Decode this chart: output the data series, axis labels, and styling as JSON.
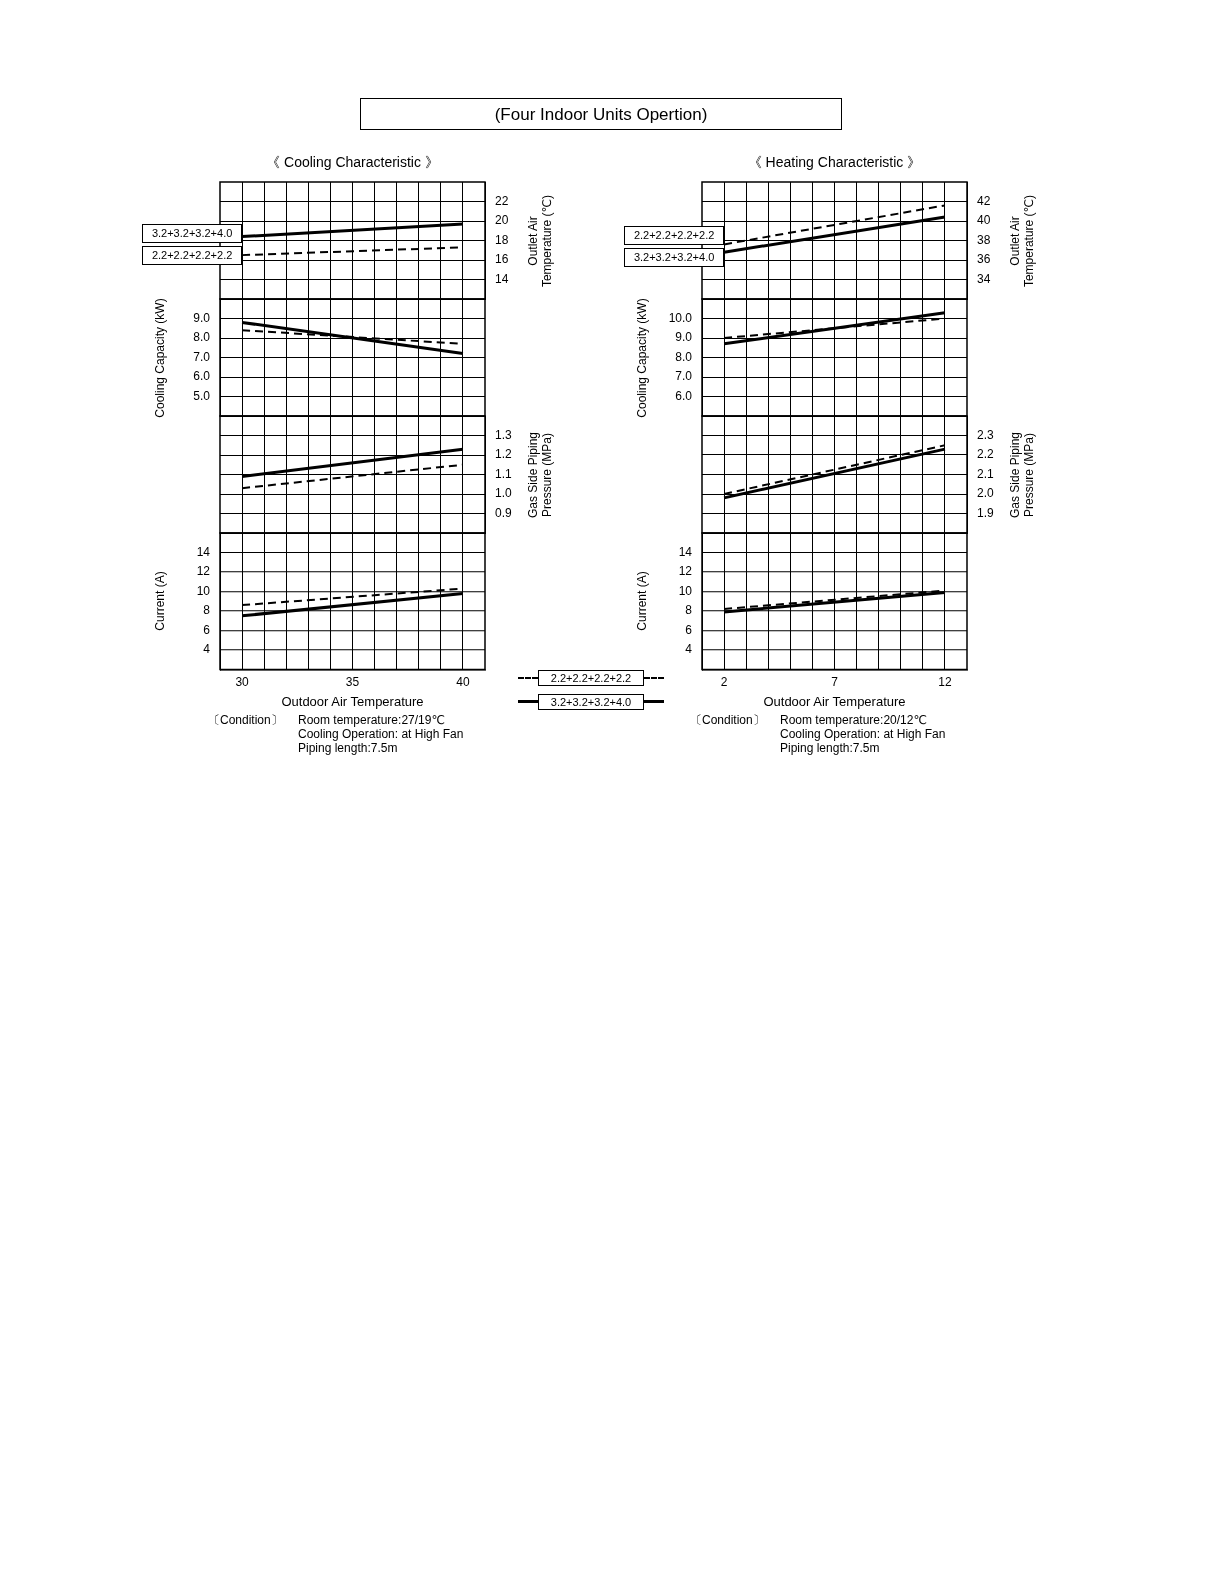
{
  "chart_data": [
    {
      "type": "line",
      "title": "《 Cooling Characteristic 》",
      "annotations": [
        "(Four Indoor Units Opertion)"
      ],
      "x": [
        30,
        40
      ],
      "xlim": [
        29,
        41
      ],
      "xticks": [
        30,
        {
          "value": 31,
          "label": null
        },
        {
          "value": 32,
          "label": null
        },
        {
          "value": 33,
          "label": null
        },
        {
          "value": 34,
          "label": null
        },
        35,
        {
          "value": 36,
          "label": null
        },
        {
          "value": 37,
          "label": null
        },
        {
          "value": 38,
          "label": null
        },
        {
          "value": 39,
          "label": null
        },
        40
      ],
      "y2lim": [
        12,
        24
      ],
      "y2ticks": [
        14,
        16,
        18,
        20,
        22
      ],
      "y2label": "Outlet Air Temperature (℃)",
      "tick_labels": "y",
      "grid": true,
      "series": [
        {
          "name": "2.2+2.2+2.2+2.2",
          "color": "#000000",
          "line_style": "dashed",
          "axis": "y2",
          "values": [
            16.5,
            17.3
          ]
        },
        {
          "name": "3.2+3.2+3.2+4.0",
          "color": "#000000",
          "line_style": "solid",
          "axis": "y2",
          "values": [
            18.4,
            19.7
          ]
        }
      ]
    },
    {
      "type": "line",
      "x": [
        30,
        40
      ],
      "xlim": [
        29,
        41
      ],
      "xticks": [
        30,
        {
          "value": 31,
          "label": null
        },
        {
          "value": 32,
          "label": null
        },
        {
          "value": 33,
          "label": null
        },
        {
          "value": 34,
          "label": null
        },
        35,
        {
          "value": 36,
          "label": null
        },
        {
          "value": 37,
          "label": null
        },
        {
          "value": 38,
          "label": null
        },
        {
          "value": 39,
          "label": null
        },
        40
      ],
      "ylim": [
        4,
        10
      ],
      "yticks": [
        {
          "value": 5,
          "label": "5.0"
        },
        {
          "value": 6,
          "label": "6.0"
        },
        {
          "value": 7,
          "label": "7.0"
        },
        {
          "value": 8,
          "label": "8.0"
        },
        {
          "value": 9,
          "label": "9.0"
        }
      ],
      "ylabel": "Cooling Capacity (kW)",
      "tick_labels": "y",
      "grid": true,
      "series": [
        {
          "color": "#000000",
          "line_style": "dashed",
          "values": [
            8.4,
            7.7
          ]
        },
        {
          "color": "#000000",
          "line_style": "solid",
          "values": [
            8.8,
            7.2
          ]
        }
      ]
    },
    {
      "type": "line",
      "x": [
        30,
        40
      ],
      "xlim": [
        29,
        41
      ],
      "xticks": [
        30,
        {
          "value": 31,
          "label": null
        },
        {
          "value": 32,
          "label": null
        },
        {
          "value": 33,
          "label": null
        },
        {
          "value": 34,
          "label": null
        },
        35,
        {
          "value": 36,
          "label": null
        },
        {
          "value": 37,
          "label": null
        },
        {
          "value": 38,
          "label": null
        },
        {
          "value": 39,
          "label": null
        },
        40
      ],
      "y2lim": [
        0.8,
        1.4
      ],
      "y2ticks": [
        0.9,
        {
          "value": 1.0,
          "label": "1.0"
        },
        1.1,
        1.2,
        1.3
      ],
      "y2label": "Gas Side Piping Pressure (MPa)",
      "tick_labels": "y",
      "grid": true,
      "series": [
        {
          "color": "#000000",
          "line_style": "dashed",
          "axis": "y2",
          "values": [
            1.03,
            1.15
          ]
        },
        {
          "color": "#000000",
          "line_style": "solid",
          "axis": "y2",
          "values": [
            1.09,
            1.23
          ]
        }
      ]
    },
    {
      "type": "line",
      "x": [
        30,
        40
      ],
      "xlim": [
        29,
        41
      ],
      "xticks": [
        30,
        {
          "value": 31,
          "label": null
        },
        {
          "value": 32,
          "label": null
        },
        {
          "value": 33,
          "label": null
        },
        {
          "value": 34,
          "label": null
        },
        35,
        {
          "value": 36,
          "label": null
        },
        {
          "value": 37,
          "label": null
        },
        {
          "value": 38,
          "label": null
        },
        {
          "value": 39,
          "label": null
        },
        40
      ],
      "ylim": [
        2,
        16
      ],
      "yticks": [
        4,
        6,
        8,
        10,
        12,
        14
      ],
      "ylabel": "Current (A)",
      "xlabel": "Outdoor Air Temperature",
      "grid": true,
      "legend": "right",
      "annotations": [
        "〔Condition〕",
        "Room temperature:27/19℃",
        "Cooling Operation: at High Fan",
        "Piping length:7.5m"
      ],
      "series": [
        {
          "name": "2.2+2.2+2.2+2.2",
          "color": "#000000",
          "line_style": "dashed",
          "values": [
            8.6,
            10.3
          ]
        },
        {
          "name": "3.2+3.2+3.2+4.0",
          "color": "#000000",
          "line_style": "solid",
          "values": [
            7.5,
            9.8
          ]
        }
      ]
    },
    {
      "type": "line",
      "title": "《 Heating Characteristic 》",
      "x": [
        2,
        12
      ],
      "xlim": [
        1,
        13
      ],
      "xticks": [
        2,
        {
          "value": 3,
          "label": null
        },
        {
          "value": 4,
          "label": null
        },
        {
          "value": 5,
          "label": null
        },
        {
          "value": 6,
          "label": null
        },
        7,
        {
          "value": 8,
          "label": null
        },
        {
          "value": 9,
          "label": null
        },
        {
          "value": 10,
          "label": null
        },
        {
          "value": 11,
          "label": null
        },
        12
      ],
      "y2lim": [
        32,
        44
      ],
      "y2ticks": [
        34,
        36,
        38,
        40,
        42
      ],
      "y2label": "Outlet Air Temperature (℃)",
      "tick_labels": "y",
      "grid": true,
      "series": [
        {
          "name": "2.2+2.2+2.2+2.2",
          "color": "#000000",
          "line_style": "dashed",
          "axis": "y2",
          "values": [
            37.6,
            41.6
          ]
        },
        {
          "name": "3.2+3.2+3.2+4.0",
          "color": "#000000",
          "line_style": "solid",
          "axis": "y2",
          "values": [
            36.8,
            40.4
          ]
        }
      ]
    },
    {
      "type": "line",
      "x": [
        2,
        12
      ],
      "xlim": [
        1,
        13
      ],
      "xticks": [
        2,
        {
          "value": 3,
          "label": null
        },
        {
          "value": 4,
          "label": null
        },
        {
          "value": 5,
          "label": null
        },
        {
          "value": 6,
          "label": null
        },
        7,
        {
          "value": 8,
          "label": null
        },
        {
          "value": 9,
          "label": null
        },
        {
          "value": 10,
          "label": null
        },
        {
          "value": 11,
          "label": null
        },
        12
      ],
      "ylim": [
        5,
        11
      ],
      "yticks": [
        {
          "value": 6,
          "label": "6.0"
        },
        {
          "value": 7,
          "label": "7.0"
        },
        {
          "value": 8,
          "label": "8.0"
        },
        {
          "value": 9,
          "label": "9.0"
        },
        {
          "value": 10,
          "label": "10.0"
        }
      ],
      "ylabel": "Cooling Capacity (kW)",
      "tick_labels": "y",
      "grid": true,
      "series": [
        {
          "color": "#000000",
          "line_style": "dashed",
          "values": [
            9.0,
            10.0
          ]
        },
        {
          "color": "#000000",
          "line_style": "solid",
          "values": [
            8.7,
            10.3
          ]
        }
      ]
    },
    {
      "type": "line",
      "x": [
        2,
        12
      ],
      "xlim": [
        1,
        13
      ],
      "xticks": [
        2,
        {
          "value": 3,
          "label": null
        },
        {
          "value": 4,
          "label": null
        },
        {
          "value": 5,
          "label": null
        },
        {
          "value": 6,
          "label": null
        },
        7,
        {
          "value": 8,
          "label": null
        },
        {
          "value": 9,
          "label": null
        },
        {
          "value": 10,
          "label": null
        },
        {
          "value": 11,
          "label": null
        },
        12
      ],
      "y2lim": [
        1.8,
        2.4
      ],
      "y2ticks": [
        1.9,
        {
          "value": 2.0,
          "label": "2.0"
        },
        2.1,
        2.2,
        2.3
      ],
      "y2label": "Gas Side Piping Pressure (MPa)",
      "tick_labels": "y",
      "grid": true,
      "series": [
        {
          "color": "#000000",
          "line_style": "dashed",
          "axis": "y2",
          "values": [
            2.0,
            2.25
          ]
        },
        {
          "color": "#000000",
          "line_style": "solid",
          "axis": "y2",
          "values": [
            1.98,
            2.23
          ]
        }
      ]
    },
    {
      "type": "line",
      "x": [
        2,
        12
      ],
      "xlim": [
        1,
        13
      ],
      "xticks": [
        2,
        {
          "value": 3,
          "label": null
        },
        {
          "value": 4,
          "label": null
        },
        {
          "value": 5,
          "label": null
        },
        {
          "value": 6,
          "label": null
        },
        7,
        {
          "value": 8,
          "label": null
        },
        {
          "value": 9,
          "label": null
        },
        {
          "value": 10,
          "label": null
        },
        {
          "value": 11,
          "label": null
        },
        12
      ],
      "ylim": [
        2,
        16
      ],
      "yticks": [
        4,
        6,
        8,
        10,
        12,
        14
      ],
      "ylabel": "Current (A)",
      "xlabel": "Outdoor Air Temperature",
      "grid": true,
      "annotations": [
        "〔Condition〕",
        "Room temperature:20/12℃",
        "Cooling Operation: at High Fan",
        "Piping length:7.5m"
      ],
      "series": [
        {
          "color": "#000000",
          "line_style": "dashed",
          "values": [
            8.2,
            10.1
          ]
        },
        {
          "color": "#000000",
          "line_style": "solid",
          "values": [
            7.9,
            9.9
          ]
        }
      ]
    }
  ]
}
